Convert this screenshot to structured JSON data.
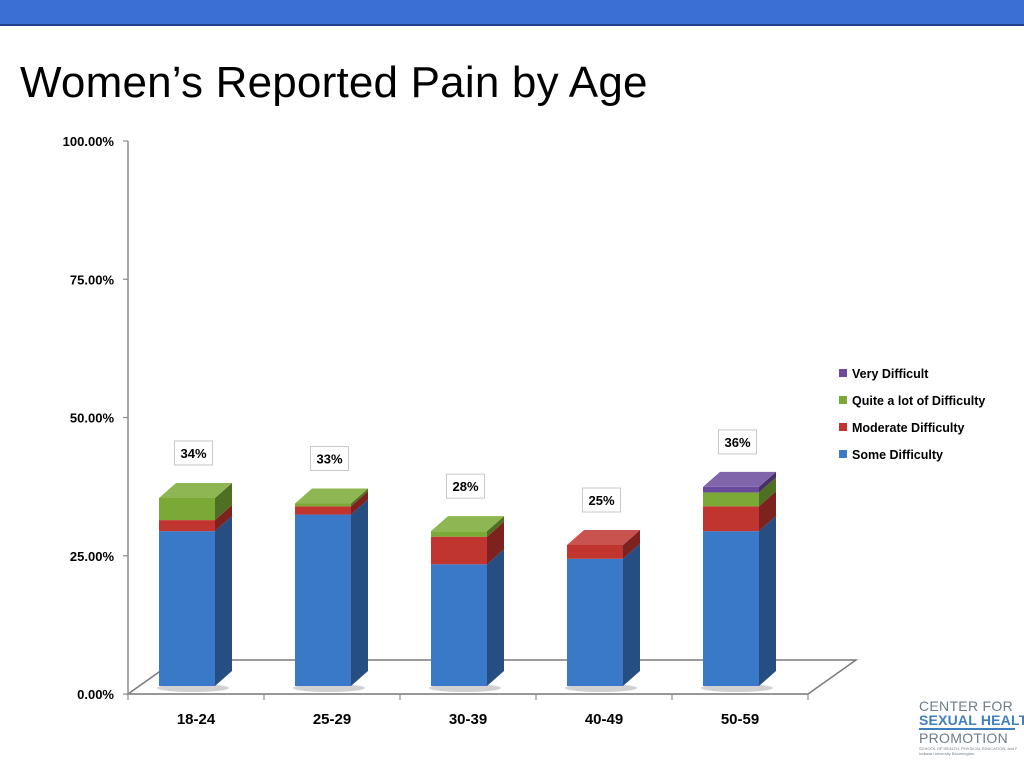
{
  "slide": {
    "title": "Women’s Reported Pain by Age"
  },
  "logo": {
    "line1": "CENTER FOR",
    "line2": "SEXUAL HEALTH",
    "line3": "PROMOTION",
    "subline1": "SCHOOL OF HEALTH, PHYSICAL EDUCATION, and RECREATION",
    "subline2": "Indiana University Bloomington"
  },
  "colors": {
    "top_band": "#3b6fd4",
    "some_difficulty": "#3a78c8",
    "moderate_difficulty": "#c0352f",
    "quite_a_lot": "#7aaa35",
    "very_difficult": "#6b4a9c"
  },
  "chart_data": {
    "type": "bar",
    "stacked": true,
    "three_d": true,
    "title": "",
    "xlabel": "",
    "ylabel": "",
    "categories": [
      "18-24",
      "25-29",
      "30-39",
      "40-49",
      "50-59"
    ],
    "ylim": [
      0,
      100
    ],
    "yticks": [
      0,
      25,
      50,
      75,
      100
    ],
    "ytick_labels": [
      "0.00%",
      "25.00%",
      "50.00%",
      "75.00%",
      "100.00%"
    ],
    "series": [
      {
        "name": "Some Difficulty",
        "color": "#3a78c8",
        "values": [
          28,
          31,
          22,
          23,
          28
        ]
      },
      {
        "name": "Moderate Difficulty",
        "color": "#c0352f",
        "values": [
          2,
          1.5,
          5,
          2.5,
          4.5
        ]
      },
      {
        "name": "Quite a lot of Difficulty",
        "color": "#7aaa35",
        "values": [
          4,
          0.5,
          1,
          0,
          2.5
        ]
      },
      {
        "name": "Very Difficult",
        "color": "#6b4a9c",
        "values": [
          0,
          0,
          0,
          0,
          1
        ]
      }
    ],
    "total_labels": [
      "34%",
      "33%",
      "28%",
      "25%",
      "36%"
    ],
    "legend": {
      "position": "right",
      "order": [
        "Very Difficult",
        "Quite a lot of Difficulty",
        "Moderate Difficulty",
        "Some Difficulty"
      ]
    },
    "grid": false
  }
}
